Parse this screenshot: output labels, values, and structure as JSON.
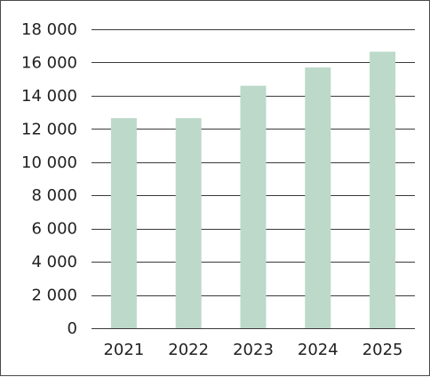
{
  "chart_data": {
    "type": "bar",
    "title": "",
    "xlabel": "",
    "ylabel": "",
    "categories": [
      "2021",
      "2022",
      "2023",
      "2024",
      "2025"
    ],
    "series": [
      {
        "values": [
          12650,
          12650,
          14600,
          15700,
          16650
        ],
        "color": "#bcd9ca"
      }
    ],
    "ylim": [
      0,
      18000
    ],
    "yticks": [
      0,
      2000,
      4000,
      6000,
      8000,
      10000,
      12000,
      14000,
      16000,
      18000
    ],
    "ytick_labels": [
      "0",
      "2 000",
      "4 000",
      "6 000",
      "8 000",
      "10 000",
      "12 000",
      "14 000",
      "16 000",
      "18 000"
    ],
    "grid": true,
    "grid_color": "#3a3a3a",
    "legend": "none"
  }
}
